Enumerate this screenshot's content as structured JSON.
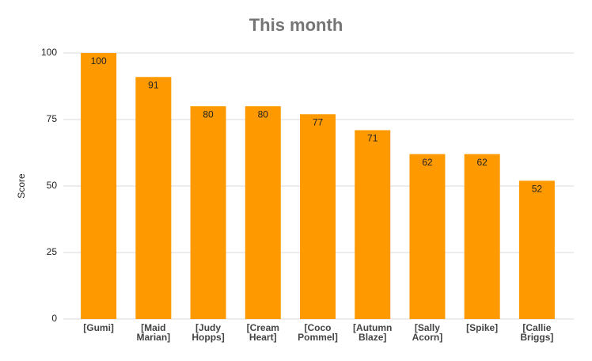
{
  "chart_data": {
    "type": "bar",
    "title": "This month",
    "y_label": "Score",
    "categories": [
      "[Gumi]",
      "[Maid Marian]",
      "[Judy Hopps]",
      "[Cream Heart]",
      "[Coco Pommel]",
      "[Autumn Blaze]",
      "[Sally Acorn]",
      "[Spike]",
      "[Callie Briggs]"
    ],
    "values": [
      100,
      91,
      80,
      80,
      77,
      71,
      62,
      62,
      52
    ],
    "color": "#ff9900",
    "ylim": [
      0,
      100
    ],
    "yticks": [
      0,
      25,
      50,
      75,
      100
    ],
    "grid": true
  }
}
